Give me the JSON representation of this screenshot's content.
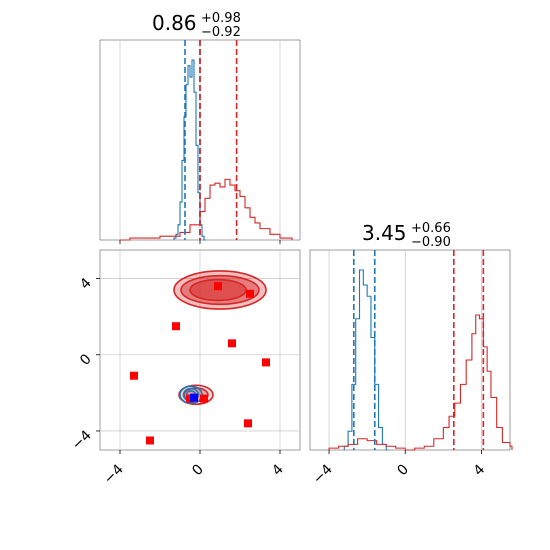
{
  "colors": {
    "blue": "#1f77b4",
    "red": "#d62728",
    "marker": "#ff0000",
    "marker_blue": "#0000ff",
    "grid": "#cccccc",
    "frame": "#888888"
  },
  "chart_data": [
    {
      "type": "line",
      "kind": "histogram",
      "panel": "top-left",
      "title_value": "0.86",
      "title_plus": "+0.98",
      "title_minus": "−0.92",
      "xlim": [
        -5,
        5
      ],
      "xticks": [
        -4,
        0,
        4
      ],
      "series": [
        {
          "color": "blue",
          "x": [
            -1.3,
            -1.2,
            -1.1,
            -1.0,
            -0.9,
            -0.8,
            -0.7,
            -0.6,
            -0.5,
            -0.4,
            -0.3,
            -0.2,
            -0.1,
            0.0,
            0.1,
            0.2
          ],
          "values": [
            0.01,
            0.03,
            0.08,
            0.2,
            0.42,
            0.65,
            0.82,
            0.92,
            0.86,
            0.95,
            0.78,
            0.5,
            0.25,
            0.08,
            0.02,
            0.0
          ]
        },
        {
          "color": "red",
          "x": [
            -4.0,
            -3.5,
            -3.0,
            -2.5,
            -2.0,
            -1.5,
            -1.0,
            -0.5,
            0.0,
            0.25,
            0.5,
            0.75,
            1.0,
            1.25,
            1.5,
            1.75,
            2.0,
            2.25,
            2.5,
            2.75,
            3.0,
            3.5,
            4.0,
            4.5
          ],
          "values": [
            0.0,
            0.01,
            0.01,
            0.01,
            0.02,
            0.02,
            0.04,
            0.08,
            0.15,
            0.22,
            0.29,
            0.3,
            0.28,
            0.32,
            0.29,
            0.26,
            0.23,
            0.17,
            0.12,
            0.09,
            0.06,
            0.03,
            0.01,
            0.01
          ]
        }
      ],
      "quantiles": [
        {
          "color": "blue",
          "x": [
            -0.75,
            0.0
          ]
        },
        {
          "color": "red",
          "x": [
            0.0,
            1.83
          ]
        }
      ]
    },
    {
      "type": "scatter",
      "kind": "2d-contour",
      "panel": "bottom-left",
      "xlim": [
        -5,
        5
      ],
      "ylim": [
        -5,
        5.5
      ],
      "xticks": [
        -4,
        0,
        4
      ],
      "yticks": [
        -4,
        0,
        4
      ],
      "red_contours": [
        {
          "cx": 1.0,
          "cy": 3.4,
          "rx": 4.6,
          "ry": 2.0,
          "fill": 0.55
        },
        {
          "cx": 1.0,
          "cy": 3.4,
          "rx": 3.9,
          "ry": 1.5,
          "fill": 0.8
        },
        {
          "cx": 0.9,
          "cy": 3.4,
          "rx": 2.8,
          "ry": 1.1,
          "fill": 0.95
        },
        {
          "cx": -0.2,
          "cy": -2.1,
          "rx": 1.7,
          "ry": 1.0,
          "fill": 0.35
        },
        {
          "cx": -0.2,
          "cy": -2.1,
          "rx": 1.2,
          "ry": 0.7,
          "fill": 0.55
        }
      ],
      "blue_contours": [
        {
          "cx": -0.45,
          "cy": -2.1,
          "rx": 1.1,
          "ry": 0.9
        },
        {
          "cx": -0.45,
          "cy": -2.1,
          "rx": 0.75,
          "ry": 0.65
        },
        {
          "cx": -0.45,
          "cy": -2.1,
          "rx": 0.45,
          "ry": 0.4
        }
      ],
      "markers": [
        [
          0.9,
          3.6
        ],
        [
          2.5,
          3.2
        ],
        [
          -1.2,
          1.5
        ],
        [
          1.6,
          0.6
        ],
        [
          3.3,
          -0.4
        ],
        [
          -3.3,
          -1.1
        ],
        [
          0.2,
          -2.3
        ],
        [
          -2.5,
          -4.5
        ],
        [
          2.4,
          -3.6
        ],
        [
          -0.5,
          -2.3
        ]
      ],
      "blue_marker": [
        -0.3,
        -2.25
      ]
    },
    {
      "type": "line",
      "kind": "histogram",
      "panel": "bottom-right",
      "title_value": "3.45",
      "title_plus": "+0.66",
      "title_minus": "−0.90",
      "xlim": [
        -5,
        5.5
      ],
      "xticks": [
        -4,
        0,
        4
      ],
      "series": [
        {
          "color": "blue",
          "x": [
            -3.2,
            -3.0,
            -2.8,
            -2.6,
            -2.4,
            -2.2,
            -2.0,
            -1.8,
            -1.6,
            -1.4,
            -1.2,
            -1.0
          ],
          "values": [
            0.02,
            0.1,
            0.35,
            0.7,
            0.96,
            0.88,
            0.82,
            0.6,
            0.35,
            0.12,
            0.03,
            0.0
          ]
        },
        {
          "color": "red",
          "x": [
            -4.0,
            -3.5,
            -3.0,
            -2.5,
            -2.0,
            -1.5,
            -1.0,
            -0.5,
            0.0,
            0.5,
            1.0,
            1.5,
            2.0,
            2.3,
            2.6,
            2.9,
            3.2,
            3.5,
            3.7,
            3.9,
            4.1,
            4.3,
            4.5,
            4.8,
            5.1,
            5.5
          ],
          "values": [
            0.01,
            0.02,
            0.03,
            0.06,
            0.05,
            0.03,
            0.02,
            0.01,
            0.0,
            0.01,
            0.02,
            0.06,
            0.12,
            0.18,
            0.25,
            0.35,
            0.48,
            0.62,
            0.72,
            0.7,
            0.55,
            0.42,
            0.28,
            0.12,
            0.04,
            0.02
          ]
        }
      ],
      "quantiles": [
        {
          "color": "blue",
          "x": [
            -2.7,
            -1.6
          ]
        },
        {
          "color": "red",
          "x": [
            2.55,
            4.1
          ]
        }
      ]
    }
  ]
}
